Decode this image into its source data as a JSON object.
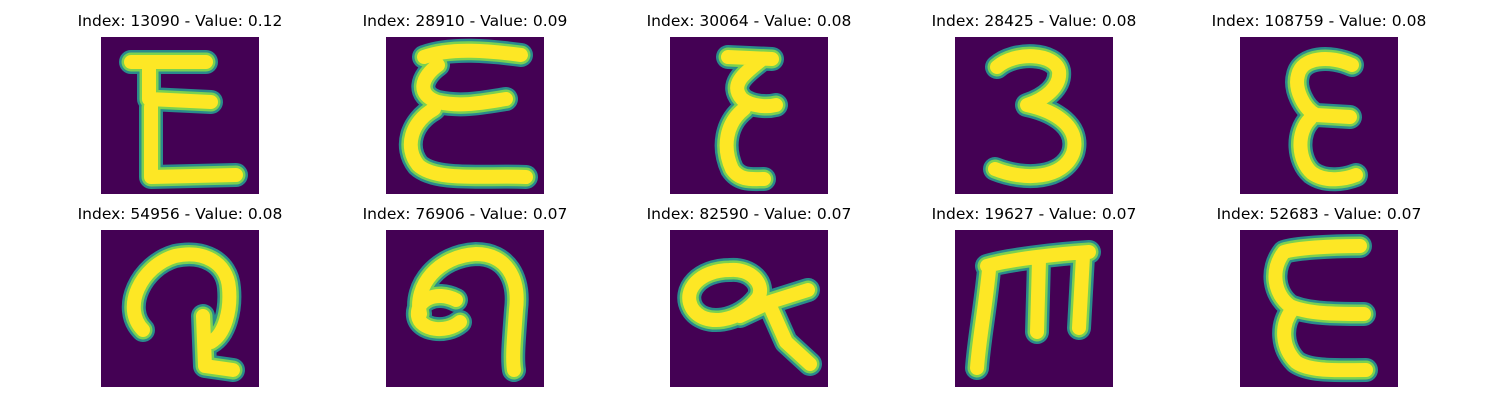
{
  "panels": [
    {
      "title": "Index: 13090 - Value: 0.12",
      "glyph": "E-square"
    },
    {
      "title": "Index: 28910 - Value: 0.09",
      "glyph": "E-wavy"
    },
    {
      "title": "Index: 30064 - Value: 0.08",
      "glyph": "E-narrow"
    },
    {
      "title": "Index: 28425 - Value: 0.08",
      "glyph": "three"
    },
    {
      "title": "Index: 108759 - Value: 0.08",
      "glyph": "E-round"
    },
    {
      "title": "Index: 54956 - Value: 0.08",
      "glyph": "loop-hook"
    },
    {
      "title": "Index: 76906 - Value: 0.07",
      "glyph": "curl-hook"
    },
    {
      "title": "Index: 82590 - Value: 0.07",
      "glyph": "alpha-tail"
    },
    {
      "title": "Index: 19627 - Value: 0.07",
      "glyph": "m-shape"
    },
    {
      "title": "Index: 52683 - Value: 0.07",
      "glyph": "E-tall"
    }
  ],
  "colors": {
    "background": "#440154",
    "stroke": "#fde725",
    "edge": "#2a8b8c",
    "title_text": "#000000"
  }
}
